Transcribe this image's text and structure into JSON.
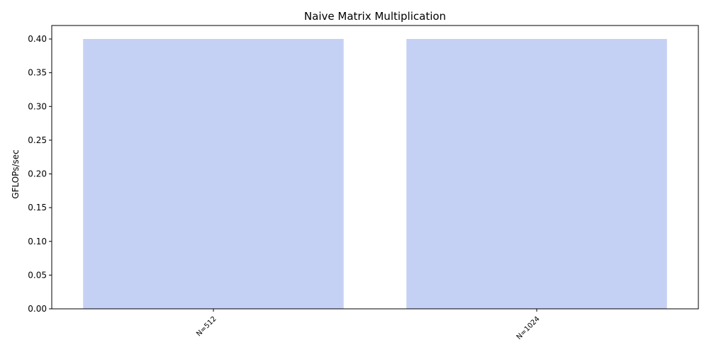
{
  "chart_data": {
    "type": "bar",
    "title": "Naive Matrix Multiplication",
    "xlabel": "",
    "ylabel": "GFLOPs/sec",
    "categories": [
      "N=512",
      "N=1024"
    ],
    "values": [
      0.4,
      0.4
    ],
    "ylim": [
      0,
      0.42
    ],
    "yticks": [
      "0.00",
      "0.05",
      "0.10",
      "0.15",
      "0.20",
      "0.25",
      "0.30",
      "0.35",
      "0.40"
    ],
    "bar_color": "#c5d1f4",
    "grid": false,
    "legend": "none"
  }
}
